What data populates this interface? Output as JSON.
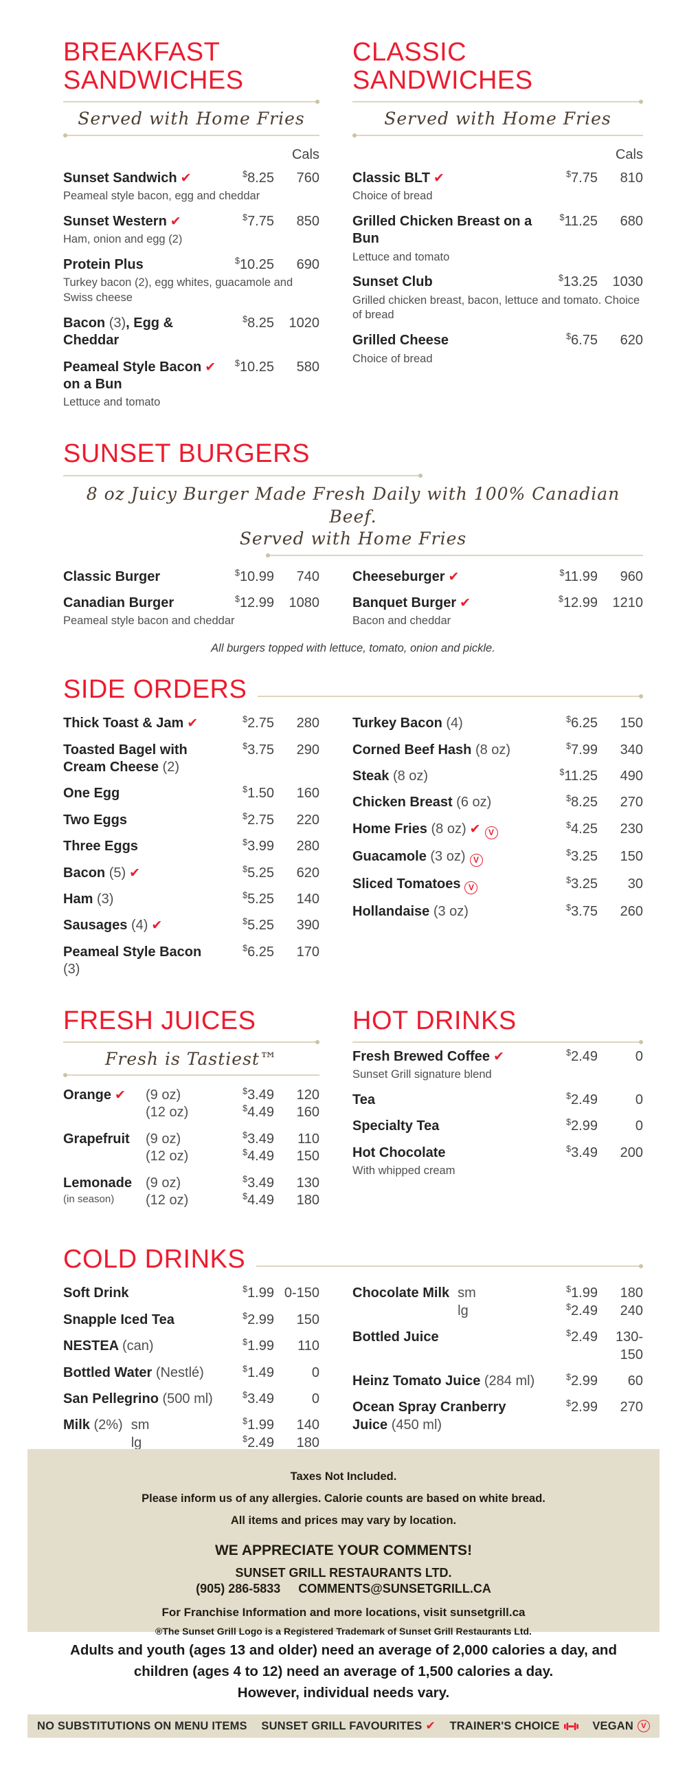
{
  "theme": {
    "red": "#ec1c2f",
    "beige": "#e3decb",
    "rule": "#ddd6bd",
    "rule_dot": "#cbc3a4",
    "ink": "#262324",
    "gray": "#4e4f52"
  },
  "labels": {
    "cals": "Cals",
    "currency": "$"
  },
  "sections": {
    "breakfast": {
      "title": "BREAKFAST SANDWICHES",
      "subtitle": "Served with Home Fries",
      "items": [
        {
          "name": "Sunset Sandwich",
          "fav": true,
          "price": "8.25",
          "cals": "760",
          "desc": "Peameal style bacon, egg and cheddar"
        },
        {
          "name": "Sunset Western",
          "fav": true,
          "price": "7.75",
          "cals": "850",
          "desc": "Ham, onion and egg (2)"
        },
        {
          "name": "Protein Plus",
          "price": "10.25",
          "cals": "690",
          "desc": "Turkey bacon (2), egg whites, guacamole and Swiss cheese"
        },
        {
          "name": "Bacon (3), Egg & Cheddar",
          "price": "8.25",
          "cals": "1020"
        },
        {
          "name": "Peameal Style Bacon",
          "fav": true,
          "name2": "on a Bun",
          "price": "10.25",
          "cals": "580",
          "desc": "Lettuce and tomato"
        }
      ]
    },
    "classic": {
      "title": "CLASSIC SANDWICHES",
      "subtitle": "Served with Home Fries",
      "items": [
        {
          "name": "Classic BLT",
          "fav": true,
          "price": "7.75",
          "cals": "810",
          "desc": "Choice of bread"
        },
        {
          "name": "Grilled Chicken Breast on a Bun",
          "price": "11.25",
          "cals": "680",
          "desc": "Lettuce and tomato"
        },
        {
          "name": "Sunset Club",
          "price": "13.25",
          "cals": "1030",
          "desc": "Grilled chicken breast, bacon, lettuce and tomato. Choice of bread"
        },
        {
          "name": "Grilled Cheese",
          "price": "6.75",
          "cals": "620",
          "desc": "Choice of bread"
        }
      ]
    },
    "burgers": {
      "title": "SUNSET BURGERS",
      "subtitle_lines": [
        "8 oz Juicy Burger Made Fresh Daily with 100% Canadian Beef.",
        "Served with Home Fries"
      ],
      "items_left": [
        {
          "name": "Classic Burger",
          "price": "10.99",
          "cals": "740"
        },
        {
          "name": "Canadian Burger",
          "price": "12.99",
          "cals": "1080",
          "desc": "Peameal style bacon and cheddar"
        }
      ],
      "items_right": [
        {
          "name": "Cheeseburger",
          "fav": true,
          "price": "11.99",
          "cals": "960"
        },
        {
          "name": "Banquet Burger",
          "fav": true,
          "price": "12.99",
          "cals": "1210",
          "desc": "Bacon and cheddar"
        }
      ],
      "note": "All burgers topped with lettuce, tomato, onion and pickle."
    },
    "sides": {
      "title": "SIDE ORDERS",
      "items_left": [
        {
          "name": "Thick Toast & Jam",
          "fav": true,
          "price": "2.75",
          "cals": "280"
        },
        {
          "name": "Toasted Bagel with Cream Cheese (2)",
          "price": "3.75",
          "cals": "290"
        },
        {
          "name": "One Egg",
          "price": "1.50",
          "cals": "160"
        },
        {
          "name": "Two Eggs",
          "price": "2.75",
          "cals": "220"
        },
        {
          "name": "Three Eggs",
          "price": "3.99",
          "cals": "280"
        },
        {
          "name": "Bacon (5)",
          "fav": true,
          "price": "5.25",
          "cals": "620"
        },
        {
          "name": "Ham (3)",
          "price": "5.25",
          "cals": "140"
        },
        {
          "name": "Sausages (4)",
          "fav": true,
          "price": "5.25",
          "cals": "390"
        },
        {
          "name": "Peameal Style Bacon (3)",
          "price": "6.25",
          "cals": "170"
        }
      ],
      "items_right": [
        {
          "name": "Turkey Bacon (4)",
          "price": "6.25",
          "cals": "150"
        },
        {
          "name": "Corned Beef Hash (8 oz)",
          "price": "7.99",
          "cals": "340"
        },
        {
          "name": "Steak (8 oz)",
          "price": "11.25",
          "cals": "490"
        },
        {
          "name": "Chicken Breast (6 oz)",
          "price": "8.25",
          "cals": "270"
        },
        {
          "name": "Home Fries (8 oz)",
          "fav": true,
          "vegan": true,
          "price": "4.25",
          "cals": "230"
        },
        {
          "name": "Guacamole (3 oz)",
          "vegan": true,
          "price": "3.25",
          "cals": "150"
        },
        {
          "name": "Sliced Tomatoes",
          "vegan": true,
          "price": "3.25",
          "cals": "30"
        },
        {
          "name": "Hollandaise (3 oz)",
          "price": "3.75",
          "cals": "260"
        }
      ]
    },
    "juices": {
      "title": "FRESH JUICES",
      "subtitle": "Fresh is Tastiest™",
      "items": [
        {
          "name": "Orange",
          "fav": true,
          "sizes": [
            {
              "label": "(9 oz)",
              "price": "3.49",
              "cals": "120"
            },
            {
              "label": "(12 oz)",
              "price": "4.49",
              "cals": "160"
            }
          ]
        },
        {
          "name": "Grapefruit",
          "sizes": [
            {
              "label": "(9 oz)",
              "price": "3.49",
              "cals": "110"
            },
            {
              "label": "(12 oz)",
              "price": "4.49",
              "cals": "150"
            }
          ]
        },
        {
          "name": "Lemonade",
          "subnote": "(in season)",
          "sizes": [
            {
              "label": "(9 oz)",
              "price": "3.49",
              "cals": "130"
            },
            {
              "label": "(12 oz)",
              "price": "4.49",
              "cals": "180"
            }
          ]
        }
      ]
    },
    "hot_drinks": {
      "title": "HOT DRINKS",
      "items": [
        {
          "name": "Fresh Brewed Coffee",
          "fav": true,
          "price": "2.49",
          "cals": "0",
          "desc": "Sunset Grill signature blend"
        },
        {
          "name": "Tea",
          "price": "2.49",
          "cals": "0"
        },
        {
          "name": "Specialty Tea",
          "price": "2.99",
          "cals": "0"
        },
        {
          "name": "Hot Chocolate",
          "price": "3.49",
          "cals": "200",
          "desc": "With whipped cream"
        }
      ]
    },
    "cold_drinks": {
      "title": "COLD DRINKS",
      "items_left": [
        {
          "name": "Soft Drink",
          "price": "1.99",
          "cals": "0-150"
        },
        {
          "name": "Snapple Iced Tea",
          "price": "2.99",
          "cals": "150"
        },
        {
          "name": "NESTEA (can)",
          "price": "1.99",
          "cals": "110"
        },
        {
          "name": "Bottled Water (Nestlé)",
          "price": "1.49",
          "cals": "0"
        },
        {
          "name": "San Pellegrino (500 ml)",
          "price": "3.49",
          "cals": "0"
        },
        {
          "name": "Milk (2%)",
          "sizes": [
            {
              "label": "sm",
              "price": "1.99",
              "cals": "140"
            },
            {
              "label": "lg",
              "price": "2.49",
              "cals": "180"
            }
          ]
        }
      ],
      "items_right": [
        {
          "name": "Chocolate Milk",
          "sizes": [
            {
              "label": "sm",
              "price": "1.99",
              "cals": "180"
            },
            {
              "label": "lg",
              "price": "2.49",
              "cals": "240"
            }
          ]
        },
        {
          "name": "Bottled Juice",
          "price": "2.49",
          "cals": "130-150"
        },
        {
          "name": "Heinz Tomato Juice (284 ml)",
          "price": "2.99",
          "cals": "60"
        },
        {
          "name": "Ocean Spray Cranberry Juice (450 ml)",
          "price": "2.99",
          "cals": "270"
        }
      ]
    }
  },
  "footer": {
    "notes": [
      "Taxes Not Included.",
      "Please inform us of any allergies. Calorie counts are based on white bread.",
      "All items and prices may vary by location."
    ],
    "comments_title": "WE APPRECIATE YOUR COMMENTS!",
    "company": "SUNSET GRILL RESTAURANTS LTD.",
    "phone": "(905) 286-5833",
    "email": "COMMENTS@SUNSETGRILL.CA",
    "franchise": "For Franchise Information and more locations, visit sunsetgrill.ca",
    "trademark": "®The Sunset Grill Logo is a Registered Trademark of Sunset Grill Restaurants Ltd.",
    "calorie_note_lines": [
      "Adults and youth (ages 13 and older) need an average of 2,000 calories a day, and",
      "children (ages 4 to 12) need an average of 1,500 calories a day.",
      "However, individual needs vary."
    ],
    "legend": [
      {
        "label": "NO SUBSTITUTIONS ON MENU ITEMS",
        "icon": null
      },
      {
        "label": "SUNSET GRILL FAVOURITES",
        "icon": "favourite-check"
      },
      {
        "label": "TRAINER'S CHOICE",
        "icon": "dumbbell"
      },
      {
        "label": "VEGAN",
        "icon": "vegan-v"
      }
    ]
  }
}
